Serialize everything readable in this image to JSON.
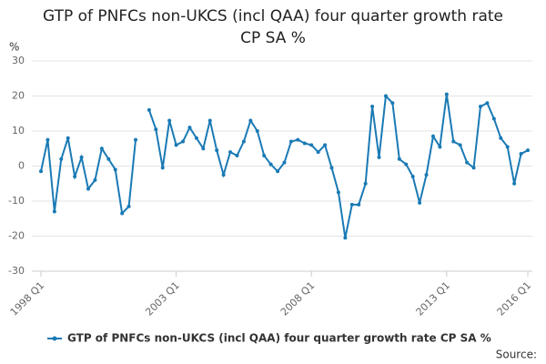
{
  "chart_data": {
    "type": "line",
    "title": "GTP of PNFCs non-UKCS (incl QAA) four quarter growth rate CP SA %",
    "y_label": "%",
    "source": "Source:",
    "categories": [
      "1998 Q1",
      null,
      null,
      null,
      null,
      null,
      null,
      null,
      null,
      null,
      null,
      null,
      null,
      null,
      null,
      null,
      null,
      null,
      null,
      null,
      "2003 Q1",
      null,
      null,
      null,
      null,
      null,
      null,
      null,
      null,
      null,
      null,
      null,
      null,
      null,
      null,
      null,
      null,
      null,
      null,
      null,
      "2008 Q1",
      null,
      null,
      null,
      null,
      null,
      null,
      null,
      null,
      null,
      null,
      null,
      null,
      null,
      null,
      null,
      null,
      null,
      null,
      null,
      "2013 Q1",
      null,
      null,
      null,
      null,
      null,
      null,
      null,
      null,
      null,
      null,
      null,
      "2016 Q1"
    ],
    "series": [
      {
        "name": "GTP of PNFCs non-UKCS (incl QAA) four quarter growth rate CP SA %",
        "color": "#1a7ab5",
        "values": [
          -1.5,
          7.5,
          -13,
          2,
          8,
          -3,
          2.5,
          -6.5,
          -4,
          5,
          2,
          -1,
          -13.5,
          -11.5,
          7.5,
          null,
          16,
          10.5,
          -0.5,
          13,
          6,
          7,
          11,
          8,
          5,
          13,
          4.5,
          -2.5,
          4,
          3,
          7,
          13,
          10,
          3,
          0.5,
          -1.5,
          1,
          7,
          7.5,
          6.5,
          6,
          4,
          6,
          -0.5,
          -7.5,
          -20.5,
          -11,
          -11,
          -5,
          17,
          2.5,
          20,
          18,
          2,
          0.5,
          -3,
          -10.5,
          -2.5,
          8.5,
          5.5,
          20.5,
          7,
          6,
          1,
          -0.5,
          17,
          18,
          13.5,
          8,
          5.5,
          -5,
          3.5,
          4.5
        ]
      }
    ],
    "ylim": [
      -30,
      30
    ],
    "yticks": [
      -30,
      -20,
      -10,
      0,
      10,
      20,
      30
    ],
    "grid": true
  }
}
